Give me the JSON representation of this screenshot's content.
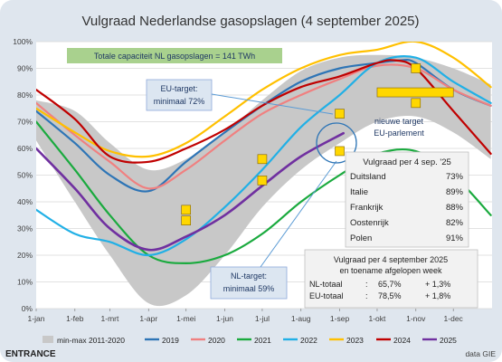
{
  "title": "Vulgraad Nederlandse gasopslagen (4 september 2025)",
  "capacity_note": "Totale capaciteit NL gasopslagen = 141 TWh",
  "footer": {
    "logo": "ENTRANCE",
    "source": "data GIE"
  },
  "colors": {
    "band": "#c8c8c8",
    "y2019": "#2e75b6",
    "y2020": "#f08080",
    "y2021": "#1aaa3e",
    "y2022": "#21b0e6",
    "y2023": "#ffc000",
    "y2024": "#c00000",
    "y2025": "#7030a0",
    "target": "#ffd700"
  },
  "chart_data": {
    "type": "line",
    "y_unit": "%",
    "ylim": [
      0,
      100
    ],
    "y_ticks": [
      "0%",
      "10%",
      "20%",
      "30%",
      "40%",
      "50%",
      "60%",
      "70%",
      "80%",
      "90%",
      "100%"
    ],
    "x_ticks": [
      "1-jan",
      "1-feb",
      "1-mrt",
      "1-apr",
      "1-mei",
      "1-jun",
      "1-jul",
      "1-aug",
      "1-sep",
      "1-okt",
      "1-nov",
      "1-dec"
    ],
    "grid": true,
    "legend_position": "bottom",
    "band": {
      "name": "min-max 2011-2020",
      "x": [
        "01-01",
        "02-01",
        "03-01",
        "04-01",
        "05-01",
        "06-01",
        "07-01",
        "08-01",
        "09-01",
        "10-01",
        "11-01",
        "12-01",
        "12-31"
      ],
      "upper": [
        78,
        74,
        62,
        52,
        56,
        66,
        78,
        89,
        94,
        95,
        94,
        90,
        84
      ],
      "lower": [
        63,
        40,
        20,
        2,
        5,
        20,
        38,
        52,
        62,
        70,
        72,
        66,
        56
      ]
    },
    "series": [
      {
        "name": "2019",
        "color_key": "y2019",
        "x": [
          "01-01",
          "02-01",
          "03-01",
          "04-01",
          "05-01",
          "06-01",
          "07-01",
          "08-01",
          "09-01",
          "10-01",
          "10-20",
          "11-01",
          "12-01",
          "12-31"
        ],
        "y": [
          74,
          62,
          50,
          44,
          55,
          66,
          76,
          85,
          90,
          92,
          93,
          92,
          82,
          76
        ]
      },
      {
        "name": "2020",
        "color_key": "y2020",
        "x": [
          "01-01",
          "02-01",
          "03-01",
          "04-01",
          "05-01",
          "06-01",
          "07-01",
          "08-01",
          "09-01",
          "10-01",
          "11-01",
          "12-01",
          "12-31"
        ],
        "y": [
          77,
          65,
          55,
          45,
          52,
          63,
          73,
          80,
          86,
          91,
          90,
          82,
          76
        ]
      },
      {
        "name": "2021",
        "color_key": "y2021",
        "x": [
          "01-01",
          "02-01",
          "03-01",
          "04-01",
          "05-01",
          "06-01",
          "07-01",
          "08-01",
          "09-01",
          "10-01",
          "11-01",
          "12-01",
          "12-31"
        ],
        "y": [
          70,
          52,
          35,
          20,
          17,
          20,
          28,
          40,
          50,
          58,
          59,
          50,
          35
        ]
      },
      {
        "name": "2022",
        "color_key": "y2022",
        "x": [
          "01-01",
          "02-01",
          "03-01",
          "04-01",
          "05-01",
          "06-01",
          "07-01",
          "08-01",
          "09-01",
          "10-01",
          "11-01",
          "12-01",
          "12-31"
        ],
        "y": [
          37,
          28,
          25,
          20,
          26,
          38,
          52,
          68,
          80,
          92,
          94,
          85,
          77
        ]
      },
      {
        "name": "2023",
        "color_key": "y2023",
        "x": [
          "01-01",
          "02-01",
          "03-01",
          "04-01",
          "05-01",
          "06-01",
          "07-01",
          "08-01",
          "09-01",
          "10-01",
          "11-01",
          "12-01",
          "12-31"
        ],
        "y": [
          75,
          66,
          59,
          57,
          62,
          72,
          82,
          90,
          95,
          97,
          100,
          94,
          83
        ]
      },
      {
        "name": "2024",
        "color_key": "y2024",
        "x": [
          "01-01",
          "02-01",
          "03-01",
          "04-01",
          "05-01",
          "06-01",
          "07-01",
          "08-01",
          "09-01",
          "10-01",
          "10-15",
          "11-01",
          "12-01",
          "12-31"
        ],
        "y": [
          82,
          71,
          57,
          55,
          60,
          67,
          76,
          83,
          87,
          92,
          93,
          90,
          74,
          58
        ]
      },
      {
        "name": "2025",
        "color_key": "y2025",
        "x": [
          "01-01",
          "02-01",
          "03-01",
          "04-01",
          "05-01",
          "06-01",
          "07-01",
          "08-01",
          "09-04"
        ],
        "y": [
          60,
          45,
          30,
          22,
          27,
          35,
          46,
          57,
          65.7
        ]
      }
    ],
    "target_markers": {
      "x": [
        "05-01",
        "05-01",
        "07-01",
        "07-01",
        "09-01",
        "09-01",
        "11-01",
        "11-01"
      ],
      "y": [
        33,
        37,
        48,
        56,
        59,
        73,
        77,
        90
      ]
    },
    "new_target_bar": {
      "x_start": "10-01",
      "x_end": "12-01",
      "y": 81
    },
    "annotations": {
      "eu_target": {
        "line1": "EU-target:",
        "line2": "minimaal 72%"
      },
      "nl_target": {
        "line1": "NL-target:",
        "line2": "minimaal 59%"
      },
      "new_target": {
        "line1": "nieuwe target",
        "line2": "EU-parlement"
      }
    },
    "country_table": {
      "title": "Vulgraad per 4 sep. '25",
      "rows": [
        {
          "country": "Duitsland",
          "value": "73%"
        },
        {
          "country": "Italie",
          "value": "89%"
        },
        {
          "country": "Frankrijk",
          "value": "88%"
        },
        {
          "country": "Oostenrijk",
          "value": "82%"
        },
        {
          "country": "Polen",
          "value": "91%"
        }
      ]
    },
    "summary_table": {
      "line1": "Vulgraad per 4 september 2025",
      "line2": "en toename afgelopen week",
      "rows": [
        {
          "label": "NL-totaal",
          "sep": ":",
          "value": "65,7%",
          "change": "+ 1,3%"
        },
        {
          "label": "EU-totaal",
          "sep": ":",
          "value": "78,5%",
          "change": "+ 1,8%"
        }
      ]
    }
  }
}
